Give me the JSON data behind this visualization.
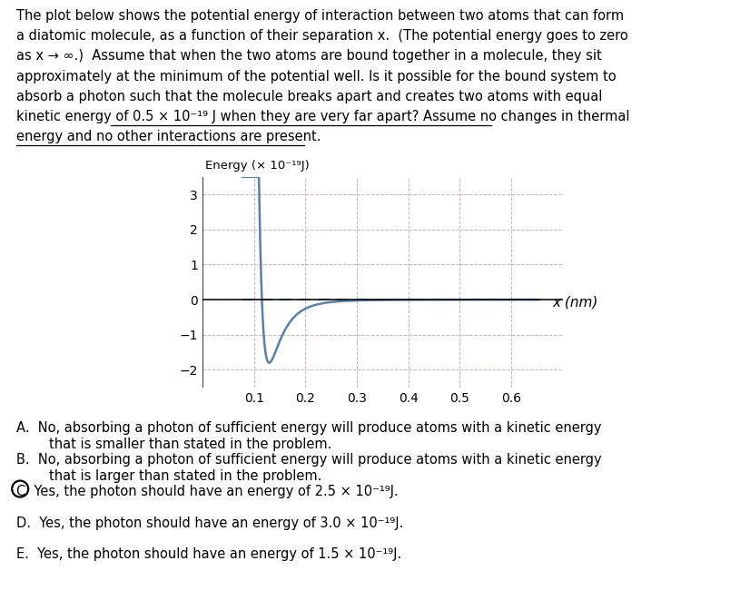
{
  "ylabel": "Energy (× 10⁻¹⁹J)",
  "xlabel": "x (nm)",
  "yticks": [
    -2,
    -1,
    0,
    1,
    2,
    3
  ],
  "xticks": [
    0.1,
    0.2,
    0.3,
    0.4,
    0.5,
    0.6
  ],
  "xlim": [
    0.0,
    0.7
  ],
  "ylim": [
    -2.5,
    3.5
  ],
  "curve_color": "#5a7fa8",
  "grid_color": "#c0a8c8",
  "question_lines": [
    "The plot below shows the potential energy of interaction between two atoms that can form",
    "a diatomic molecule, as a function of their separation x.  (The potential energy goes to zero",
    "as x → ∞.)  Assume that when the two atoms are bound together in a molecule, they sit",
    "approximately at the minimum of the potential well. Is it possible for the bound system to",
    "absorb a photon such that the molecule breaks apart and creates two atoms with equal",
    "kinetic energy of 0.5 × 10⁻¹⁹ J when they are very far apart? Assume no changes in thermal",
    "energy and no other interactions are present."
  ],
  "underline_line6_x": [
    0.148,
    0.655
  ],
  "underline_line7_x": [
    0.022,
    0.405
  ],
  "answers": [
    [
      "A.",
      "  No, absorbing a photon of sufficient energy will produce atoms with a kinetic energy",
      "that is smaller than stated in the problem."
    ],
    [
      "B.",
      "  No, absorbing a photon of sufficient energy will produce atoms with a kinetic energy",
      "that is larger than stated in the problem."
    ],
    [
      "C",
      "  Yes, the photon should have an energy of 2.5 × 10⁻¹⁹J.",
      ""
    ],
    [
      "D.",
      "  Yes, the photon should have an energy of 3.0 × 10⁻¹⁹J.",
      ""
    ],
    [
      "E.",
      "  Yes, the photon should have an energy of 1.5 × 10⁻¹⁹J.",
      ""
    ]
  ],
  "fontsize": 10.5,
  "curve_lw": 1.8,
  "dashed_lw": 1.5
}
